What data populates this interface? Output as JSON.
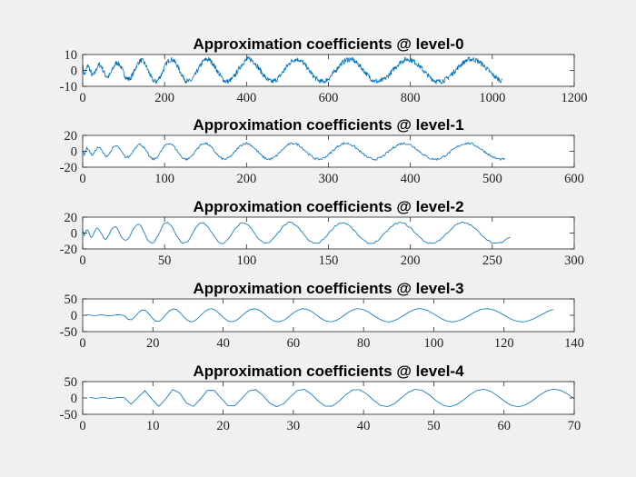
{
  "figure": {
    "background": "#f0f0f0",
    "axes_background": "#ffffff",
    "line_color": "#0072bd"
  },
  "chart_data": [
    {
      "type": "line",
      "title": "Approximation coefficients @ level-0",
      "xlim": [
        0,
        1200
      ],
      "ylim": [
        -10,
        10
      ],
      "xticks": [
        0,
        200,
        400,
        600,
        800,
        1000,
        1200
      ],
      "yticks": [
        -10,
        0,
        10
      ],
      "grid": false,
      "series": [
        {
          "n_points": 1024,
          "approx_x_end": 1024,
          "value_range": [
            -8,
            7
          ]
        }
      ]
    },
    {
      "type": "line",
      "title": "Approximation coefficients @ level-1",
      "xlim": [
        0,
        600
      ],
      "ylim": [
        -20,
        20
      ],
      "xticks": [
        0,
        100,
        200,
        300,
        400,
        500,
        600
      ],
      "yticks": [
        -20,
        0,
        20
      ],
      "grid": false,
      "series": [
        {
          "n_points": 516,
          "approx_x_end": 516,
          "value_range": [
            -11,
            10
          ]
        }
      ]
    },
    {
      "type": "line",
      "title": "Approximation coefficients @ level-2",
      "xlim": [
        0,
        300
      ],
      "ylim": [
        -20,
        20
      ],
      "xticks": [
        0,
        50,
        100,
        150,
        200,
        250,
        300
      ],
      "yticks": [
        -20,
        0,
        20
      ],
      "grid": false,
      "series": [
        {
          "n_points": 262,
          "approx_x_end": 262,
          "value_range": [
            -15,
            14
          ]
        }
      ]
    },
    {
      "type": "line",
      "title": "Approximation coefficients @ level-3",
      "xlim": [
        0,
        140
      ],
      "ylim": [
        -50,
        50
      ],
      "xticks": [
        0,
        20,
        40,
        60,
        80,
        100,
        120,
        140
      ],
      "yticks": [
        -50,
        0,
        50
      ],
      "grid": false,
      "series": [
        {
          "n_points": 135,
          "approx_x_end": 134,
          "value_range": [
            -20,
            18
          ]
        }
      ]
    },
    {
      "type": "line",
      "title": "Approximation coefficients @ level-4",
      "xlim": [
        0,
        70
      ],
      "ylim": [
        -50,
        50
      ],
      "xticks": [
        0,
        10,
        20,
        30,
        40,
        50,
        60,
        70
      ],
      "yticks": [
        -50,
        0,
        50
      ],
      "grid": false,
      "series": [
        {
          "n_points": 71,
          "approx_x_end": 70,
          "value_range": [
            -27,
            28
          ]
        }
      ]
    }
  ]
}
